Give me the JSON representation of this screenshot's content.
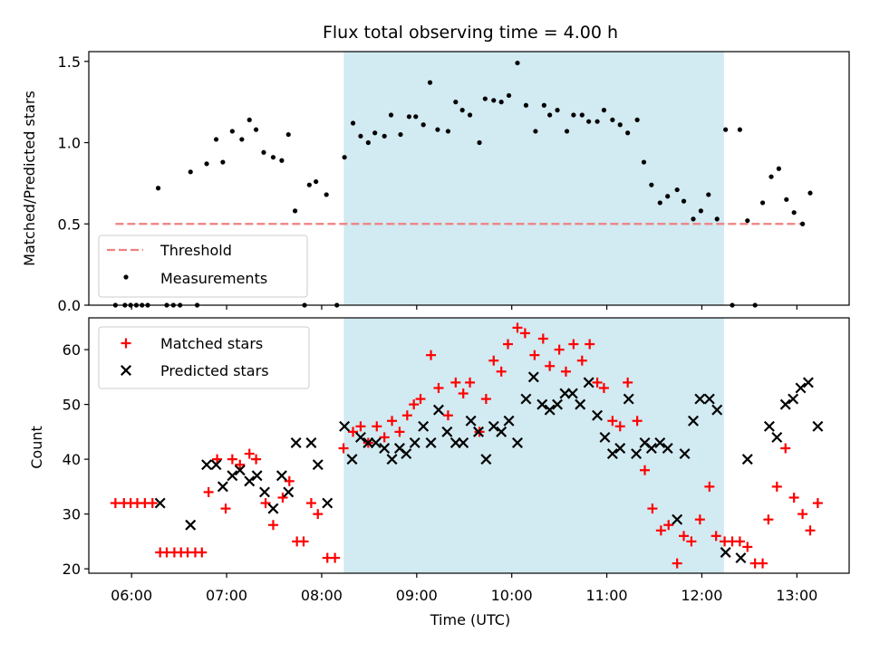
{
  "chart_data": [
    {
      "type": "scatter",
      "title": "Flux total observing time = 4.00 h",
      "xlabel": "",
      "ylabel": "Matched/Predicted stars",
      "xlim_hours": [
        5.55,
        13.55
      ],
      "ylim": [
        0,
        1.56
      ],
      "x_ticks": [
        6,
        7,
        8,
        9,
        10,
        11,
        12,
        13
      ],
      "y_ticks": [
        0.0,
        0.5,
        1.0,
        1.5
      ],
      "y_tick_labels": [
        "0.0",
        "0.5",
        "1.0",
        "1.5"
      ],
      "shaded_interval_hours": [
        8.233,
        12.233
      ],
      "shade_color": "#add8e6",
      "legend_location": "lower left",
      "threshold": {
        "name": "Threshold",
        "y": 0.5,
        "x_range_hours": [
          5.83,
          13.08
        ],
        "color": "#f08080",
        "style": "dashed"
      },
      "series": [
        {
          "name": "Measurements",
          "marker": "dot",
          "color": "#000000",
          "points": [
            [
              5.83,
              0
            ],
            [
              5.93,
              0
            ],
            [
              5.99,
              0
            ],
            [
              6.05,
              0
            ],
            [
              6.11,
              0
            ],
            [
              6.17,
              0
            ],
            [
              6.37,
              0
            ],
            [
              6.44,
              0
            ],
            [
              6.51,
              0
            ],
            [
              6.69,
              0
            ],
            [
              6.28,
              0.72
            ],
            [
              6.62,
              0.82
            ],
            [
              6.79,
              0.87
            ],
            [
              6.89,
              1.02
            ],
            [
              6.96,
              0.88
            ],
            [
              7.06,
              1.07
            ],
            [
              7.16,
              1.02
            ],
            [
              7.24,
              1.14
            ],
            [
              7.31,
              1.08
            ],
            [
              7.39,
              0.94
            ],
            [
              7.49,
              0.91
            ],
            [
              7.58,
              0.89
            ],
            [
              7.65,
              1.05
            ],
            [
              7.72,
              0.58
            ],
            [
              7.82,
              0
            ],
            [
              7.87,
              0.74
            ],
            [
              7.94,
              0.76
            ],
            [
              8.05,
              0.68
            ],
            [
              8.16,
              0
            ],
            [
              8.24,
              0.91
            ],
            [
              8.33,
              1.12
            ],
            [
              8.41,
              1.04
            ],
            [
              8.49,
              1.0
            ],
            [
              8.56,
              1.06
            ],
            [
              8.66,
              1.04
            ],
            [
              8.73,
              1.17
            ],
            [
              8.83,
              1.05
            ],
            [
              8.92,
              1.16
            ],
            [
              8.99,
              1.16
            ],
            [
              9.07,
              1.11
            ],
            [
              9.14,
              1.37
            ],
            [
              9.22,
              1.08
            ],
            [
              9.33,
              1.07
            ],
            [
              9.41,
              1.25
            ],
            [
              9.48,
              1.2
            ],
            [
              9.56,
              1.17
            ],
            [
              9.66,
              1.0
            ],
            [
              9.72,
              1.27
            ],
            [
              9.81,
              1.26
            ],
            [
              9.89,
              1.25
            ],
            [
              9.97,
              1.29
            ],
            [
              10.06,
              1.49
            ],
            [
              10.15,
              1.23
            ],
            [
              10.25,
              1.07
            ],
            [
              10.34,
              1.23
            ],
            [
              10.4,
              1.17
            ],
            [
              10.48,
              1.2
            ],
            [
              10.58,
              1.07
            ],
            [
              10.65,
              1.17
            ],
            [
              10.74,
              1.17
            ],
            [
              10.81,
              1.13
            ],
            [
              10.9,
              1.13
            ],
            [
              10.97,
              1.2
            ],
            [
              11.06,
              1.14
            ],
            [
              11.14,
              1.11
            ],
            [
              11.22,
              1.06
            ],
            [
              11.32,
              1.14
            ],
            [
              11.39,
              0.88
            ],
            [
              11.47,
              0.74
            ],
            [
              11.56,
              0.63
            ],
            [
              11.64,
              0.67
            ],
            [
              11.74,
              0.71
            ],
            [
              11.81,
              0.64
            ],
            [
              11.91,
              0.53
            ],
            [
              11.99,
              0.58
            ],
            [
              12.07,
              0.68
            ],
            [
              12.16,
              0.53
            ],
            [
              12.25,
              1.08
            ],
            [
              12.32,
              0
            ],
            [
              12.4,
              1.08
            ],
            [
              12.48,
              0.52
            ],
            [
              12.56,
              0
            ],
            [
              12.64,
              0.63
            ],
            [
              12.73,
              0.79
            ],
            [
              12.81,
              0.84
            ],
            [
              12.89,
              0.65
            ],
            [
              12.97,
              0.57
            ],
            [
              13.06,
              0.5
            ],
            [
              13.14,
              0.69
            ]
          ]
        }
      ]
    },
    {
      "type": "scatter",
      "title": "",
      "xlabel": "Time (UTC)",
      "ylabel": "Count",
      "xlim_hours": [
        5.55,
        13.55
      ],
      "ylim": [
        19.2,
        65.8
      ],
      "x_ticks": [
        6,
        7,
        8,
        9,
        10,
        11,
        12,
        13
      ],
      "x_tick_labels": [
        "06:00",
        "07:00",
        "08:00",
        "09:00",
        "10:00",
        "11:00",
        "12:00",
        "13:00"
      ],
      "y_ticks": [
        20,
        30,
        40,
        50,
        60
      ],
      "y_tick_labels": [
        "20",
        "30",
        "40",
        "50",
        "60"
      ],
      "shaded_interval_hours": [
        8.233,
        12.233
      ],
      "shade_color": "#add8e6",
      "legend_location": "upper left",
      "series": [
        {
          "name": "Matched stars",
          "marker": "plus",
          "color": "#ff0000",
          "points": [
            [
              5.83,
              32
            ],
            [
              5.92,
              32
            ],
            [
              5.99,
              32
            ],
            [
              6.06,
              32
            ],
            [
              6.14,
              32
            ],
            [
              6.22,
              32
            ],
            [
              6.3,
              23
            ],
            [
              6.37,
              23
            ],
            [
              6.45,
              23
            ],
            [
              6.52,
              23
            ],
            [
              6.59,
              23
            ],
            [
              6.67,
              23
            ],
            [
              6.74,
              23
            ],
            [
              6.81,
              34
            ],
            [
              6.9,
              40
            ],
            [
              6.99,
              31
            ],
            [
              7.06,
              40
            ],
            [
              7.14,
              39
            ],
            [
              7.24,
              41
            ],
            [
              7.31,
              40
            ],
            [
              7.41,
              32
            ],
            [
              7.49,
              28
            ],
            [
              7.59,
              33
            ],
            [
              7.66,
              36
            ],
            [
              7.74,
              25
            ],
            [
              7.81,
              25
            ],
            [
              7.89,
              32
            ],
            [
              7.96,
              30
            ],
            [
              8.06,
              22
            ],
            [
              8.14,
              22
            ],
            [
              8.23,
              42
            ],
            [
              8.33,
              45
            ],
            [
              8.41,
              46
            ],
            [
              8.49,
              43
            ],
            [
              8.58,
              46
            ],
            [
              8.66,
              44
            ],
            [
              8.74,
              47
            ],
            [
              8.82,
              45
            ],
            [
              8.9,
              48
            ],
            [
              8.97,
              50
            ],
            [
              9.04,
              51
            ],
            [
              9.15,
              59
            ],
            [
              9.23,
              53
            ],
            [
              9.33,
              48
            ],
            [
              9.41,
              54
            ],
            [
              9.49,
              52
            ],
            [
              9.56,
              54
            ],
            [
              9.66,
              45
            ],
            [
              9.73,
              51
            ],
            [
              9.81,
              58
            ],
            [
              9.89,
              56
            ],
            [
              9.96,
              61
            ],
            [
              10.06,
              64
            ],
            [
              10.14,
              63
            ],
            [
              10.24,
              59
            ],
            [
              10.33,
              62
            ],
            [
              10.4,
              57
            ],
            [
              10.5,
              60
            ],
            [
              10.57,
              56
            ],
            [
              10.65,
              61
            ],
            [
              10.74,
              58
            ],
            [
              10.82,
              61
            ],
            [
              10.9,
              54
            ],
            [
              10.97,
              53
            ],
            [
              11.06,
              47
            ],
            [
              11.14,
              46
            ],
            [
              11.22,
              54
            ],
            [
              11.32,
              47
            ],
            [
              11.4,
              38
            ],
            [
              11.48,
              31
            ],
            [
              11.57,
              27
            ],
            [
              11.65,
              28
            ],
            [
              11.74,
              21
            ],
            [
              11.81,
              26
            ],
            [
              11.89,
              25
            ],
            [
              11.98,
              29
            ],
            [
              12.08,
              35
            ],
            [
              12.15,
              26
            ],
            [
              12.24,
              25
            ],
            [
              12.32,
              25
            ],
            [
              12.4,
              25
            ],
            [
              12.48,
              24
            ],
            [
              12.56,
              21
            ],
            [
              12.64,
              21
            ],
            [
              12.7,
              29
            ],
            [
              12.79,
              35
            ],
            [
              12.88,
              42
            ],
            [
              12.97,
              33
            ],
            [
              13.06,
              30
            ],
            [
              13.14,
              27
            ],
            [
              13.22,
              32
            ]
          ]
        },
        {
          "name": "Predicted stars",
          "marker": "x",
          "color": "#000000",
          "points": [
            [
              6.3,
              32
            ],
            [
              6.62,
              28
            ],
            [
              6.79,
              39
            ],
            [
              6.89,
              39
            ],
            [
              6.96,
              35
            ],
            [
              7.06,
              37
            ],
            [
              7.14,
              38
            ],
            [
              7.24,
              36
            ],
            [
              7.32,
              37
            ],
            [
              7.4,
              34
            ],
            [
              7.49,
              31
            ],
            [
              7.58,
              37
            ],
            [
              7.65,
              34
            ],
            [
              7.73,
              43
            ],
            [
              7.89,
              43
            ],
            [
              7.96,
              39
            ],
            [
              8.06,
              32
            ],
            [
              8.24,
              46
            ],
            [
              8.32,
              40
            ],
            [
              8.41,
              44
            ],
            [
              8.49,
              43
            ],
            [
              8.57,
              43
            ],
            [
              8.66,
              42
            ],
            [
              8.74,
              40
            ],
            [
              8.82,
              42
            ],
            [
              8.89,
              41
            ],
            [
              8.98,
              43
            ],
            [
              9.07,
              46
            ],
            [
              9.15,
              43
            ],
            [
              9.23,
              49
            ],
            [
              9.32,
              45
            ],
            [
              9.41,
              43
            ],
            [
              9.49,
              43
            ],
            [
              9.57,
              47
            ],
            [
              9.65,
              45
            ],
            [
              9.73,
              40
            ],
            [
              9.81,
              46
            ],
            [
              9.89,
              45
            ],
            [
              9.97,
              47
            ],
            [
              10.06,
              43
            ],
            [
              10.15,
              51
            ],
            [
              10.23,
              55
            ],
            [
              10.32,
              50
            ],
            [
              10.4,
              49
            ],
            [
              10.48,
              50
            ],
            [
              10.56,
              52
            ],
            [
              10.64,
              52
            ],
            [
              10.72,
              50
            ],
            [
              10.81,
              54
            ],
            [
              10.9,
              48
            ],
            [
              10.98,
              44
            ],
            [
              11.06,
              41
            ],
            [
              11.14,
              42
            ],
            [
              11.23,
              51
            ],
            [
              11.31,
              41
            ],
            [
              11.4,
              43
            ],
            [
              11.47,
              42
            ],
            [
              11.56,
              43
            ],
            [
              11.64,
              42
            ],
            [
              11.74,
              29
            ],
            [
              11.82,
              41
            ],
            [
              11.91,
              47
            ],
            [
              11.98,
              51
            ],
            [
              12.08,
              51
            ],
            [
              12.16,
              49
            ],
            [
              12.25,
              23
            ],
            [
              12.41,
              22
            ],
            [
              12.48,
              40
            ],
            [
              12.71,
              46
            ],
            [
              12.79,
              44
            ],
            [
              12.88,
              50
            ],
            [
              12.96,
              51
            ],
            [
              13.04,
              53
            ],
            [
              13.12,
              54
            ],
            [
              13.22,
              46
            ]
          ]
        }
      ]
    }
  ]
}
